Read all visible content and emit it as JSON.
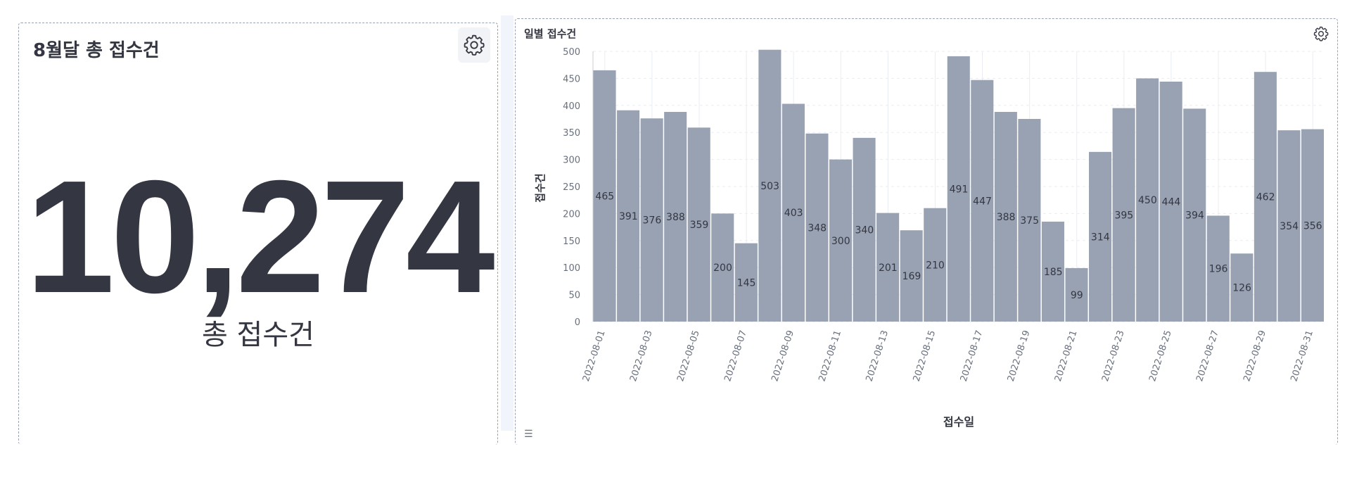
{
  "metric_panel": {
    "title": "8월달 총 접수건",
    "value": "10,274",
    "label": "총 접수건",
    "gear_icon": "gear-icon"
  },
  "chart_panel": {
    "title": "일별 접수건",
    "gear_icon": "gear-icon"
  },
  "colors": {
    "bar": "#98a2b3",
    "text": "#343741",
    "grid": "#e9edf3"
  },
  "chart_data": {
    "type": "bar",
    "title": "일별 접수건",
    "xlabel": "접수일",
    "ylabel": "접수건",
    "ylim": [
      0,
      500
    ],
    "yticks": [
      0,
      50,
      100,
      150,
      200,
      250,
      300,
      350,
      400,
      450,
      500
    ],
    "categories": [
      "2022-08-01",
      "2022-08-02",
      "2022-08-03",
      "2022-08-04",
      "2022-08-05",
      "2022-08-06",
      "2022-08-07",
      "2022-08-08",
      "2022-08-09",
      "2022-08-10",
      "2022-08-11",
      "2022-08-12",
      "2022-08-13",
      "2022-08-14",
      "2022-08-15",
      "2022-08-16",
      "2022-08-17",
      "2022-08-18",
      "2022-08-19",
      "2022-08-20",
      "2022-08-21",
      "2022-08-22",
      "2022-08-23",
      "2022-08-24",
      "2022-08-25",
      "2022-08-26",
      "2022-08-27",
      "2022-08-28",
      "2022-08-29",
      "2022-08-30",
      "2022-08-31"
    ],
    "xtick_labels": [
      "2022-08-01",
      "2022-08-03",
      "2022-08-05",
      "2022-08-07",
      "2022-08-09",
      "2022-08-11",
      "2022-08-13",
      "2022-08-15",
      "2022-08-17",
      "2022-08-19",
      "2022-08-21",
      "2022-08-23",
      "2022-08-25",
      "2022-08-27",
      "2022-08-29",
      "2022-08-31"
    ],
    "values": [
      465,
      391,
      376,
      388,
      359,
      200,
      145,
      503,
      403,
      348,
      300,
      340,
      201,
      169,
      210,
      491,
      447,
      388,
      375,
      185,
      99,
      314,
      395,
      450,
      444,
      394,
      196,
      126,
      462,
      354,
      356
    ],
    "grid": true,
    "data_labels": true
  }
}
